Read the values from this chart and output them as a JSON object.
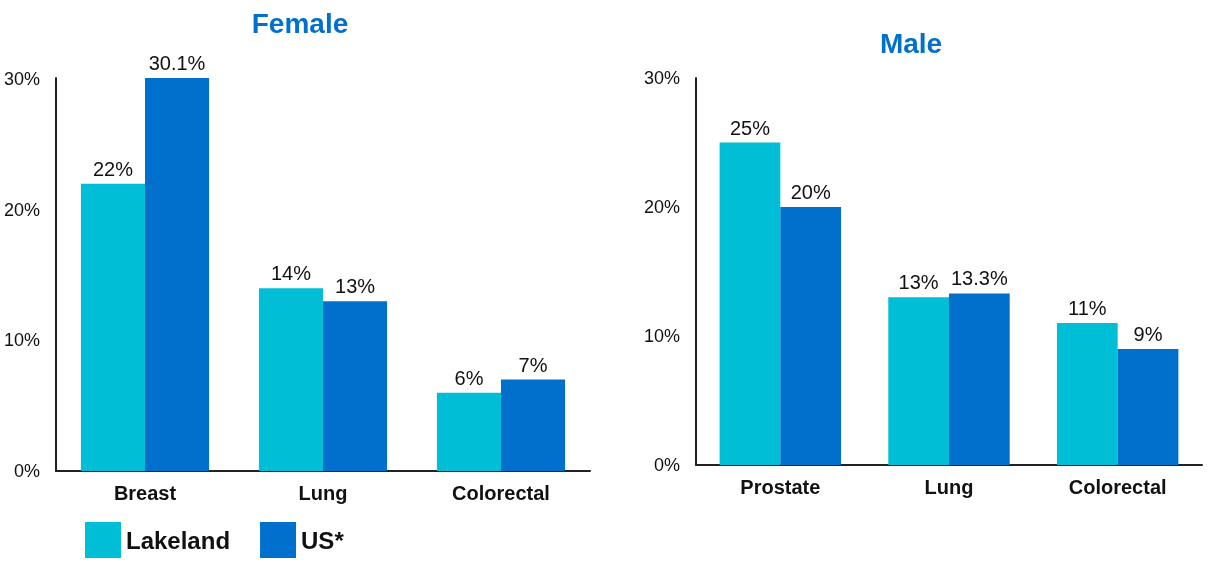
{
  "chart_data": [
    {
      "type": "bar",
      "title": "Female",
      "categories": [
        "Breast",
        "Lung",
        "Colorectal"
      ],
      "series": [
        {
          "name": "Lakeland",
          "color": "#00bed6",
          "values": [
            22,
            14,
            6
          ],
          "value_labels": [
            "22%",
            "14%",
            "6%"
          ]
        },
        {
          "name": "US*",
          "color": "#0070cc",
          "values": [
            30.1,
            13,
            7
          ],
          "value_labels": [
            "30.1%",
            "13%",
            "7%"
          ]
        }
      ],
      "ylim": [
        0,
        30.1
      ],
      "yticks": [
        {
          "value": 0,
          "label": "0%"
        },
        {
          "value": 10,
          "label": "10%"
        },
        {
          "value": 20,
          "label": "20%"
        },
        {
          "value": 30,
          "label": "30%"
        }
      ],
      "grid": false,
      "legend": "bottom left"
    },
    {
      "type": "bar",
      "title": "Male",
      "categories": [
        "Prostate",
        "Lung",
        "Colorectal"
      ],
      "series": [
        {
          "color": "#00bed6",
          "values": [
            25,
            13,
            11
          ],
          "value_labels": [
            "25%",
            "13%",
            "11%"
          ]
        },
        {
          "color": "#0070cc",
          "values": [
            20,
            13.3,
            9
          ],
          "value_labels": [
            "20%",
            "13.3%",
            "9%"
          ]
        }
      ],
      "ylim": [
        0,
        30
      ],
      "yticks": [
        {
          "value": 0,
          "label": "0%"
        },
        {
          "value": 10,
          "label": "10%"
        },
        {
          "value": 20,
          "label": "20%"
        },
        {
          "value": 30,
          "label": "30%"
        }
      ],
      "grid": false,
      "legend": false
    }
  ]
}
